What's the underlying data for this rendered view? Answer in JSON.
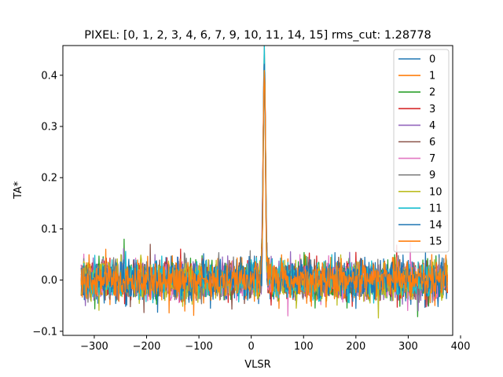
{
  "chart_data": {
    "type": "line",
    "title": "PIXEL: [0, 1, 2, 3, 4, 6, 7, 9, 10, 11, 14, 15]   rms_cut: 1.28778",
    "xlabel": "VLSR",
    "ylabel": "TA*",
    "xlim": [
      -360,
      385
    ],
    "ylim": [
      -0.108,
      0.458
    ],
    "x_range": [
      -325,
      375
    ],
    "xticks": [
      -300,
      -200,
      -100,
      0,
      100,
      200,
      300,
      400
    ],
    "yticks": [
      -0.1,
      0.0,
      0.1,
      0.2,
      0.3,
      0.4
    ],
    "ytick_labels": [
      "−0.1",
      "0.0",
      "0.1",
      "0.2",
      "0.3",
      "0.4"
    ],
    "xtick_labels": [
      "−300",
      "−200",
      "−100",
      "0",
      "100",
      "200",
      "300",
      "400"
    ],
    "grid": false,
    "legend_position": "top-right",
    "line_peak": {
      "center": 25,
      "height": 0.425
    },
    "noise_rms": 0.018,
    "series": [
      {
        "name": "0",
        "color": "#1f77b4"
      },
      {
        "name": "1",
        "color": "#ff7f0e"
      },
      {
        "name": "2",
        "color": "#2ca02c"
      },
      {
        "name": "3",
        "color": "#d62728"
      },
      {
        "name": "4",
        "color": "#9467bd"
      },
      {
        "name": "6",
        "color": "#8c564b"
      },
      {
        "name": "7",
        "color": "#e377c2"
      },
      {
        "name": "9",
        "color": "#7f7f7f"
      },
      {
        "name": "10",
        "color": "#bcbd22"
      },
      {
        "name": "11",
        "color": "#17becf"
      },
      {
        "name": "14",
        "color": "#1f77b4"
      },
      {
        "name": "15",
        "color": "#ff7f0e"
      }
    ]
  }
}
